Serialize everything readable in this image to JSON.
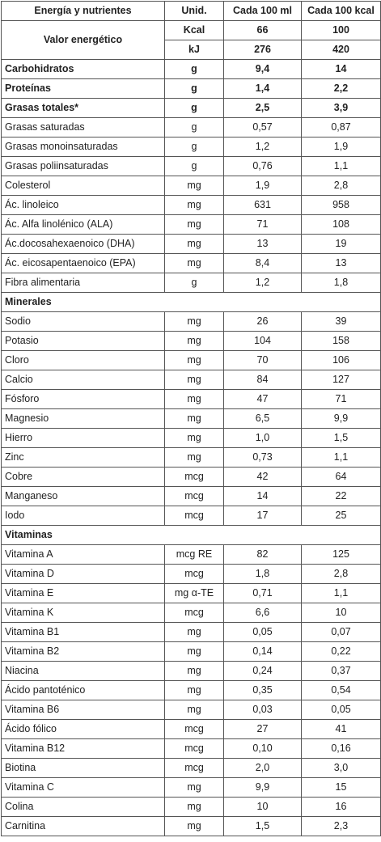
{
  "header": {
    "nutrient": "Energía y nutrientes",
    "unit": "Unid.",
    "per_100ml": "Cada 100 ml",
    "per_100kcal": "Cada 100 kcal"
  },
  "energy": {
    "label": "Valor energético",
    "rows": [
      {
        "unit": "Kcal",
        "v1": "66",
        "v2": "100"
      },
      {
        "unit": "kJ",
        "v1": "276",
        "v2": "420"
      }
    ]
  },
  "macros": [
    {
      "name": "Carbohidratos",
      "unit": "g",
      "v1": "9,4",
      "v2": "14",
      "bold": true
    },
    {
      "name": "Proteínas",
      "unit": "g",
      "v1": "1,4",
      "v2": "2,2",
      "bold": true
    },
    {
      "name": "Grasas totales*",
      "unit": "g",
      "v1": "2,5",
      "v2": "3,9",
      "bold": true
    },
    {
      "name": "Grasas saturadas",
      "unit": "g",
      "v1": "0,57",
      "v2": "0,87"
    },
    {
      "name": "Grasas monoinsaturadas",
      "unit": "g",
      "v1": "1,2",
      "v2": "1,9"
    },
    {
      "name": "Grasas poliinsaturadas",
      "unit": "g",
      "v1": "0,76",
      "v2": "1,1"
    },
    {
      "name": "Colesterol",
      "unit": "mg",
      "v1": "1,9",
      "v2": "2,8"
    },
    {
      "name": "Ác. linoleico",
      "unit": "mg",
      "v1": "631",
      "v2": "958"
    },
    {
      "name": "Ác. Alfa linolénico (ALA)",
      "unit": "mg",
      "v1": "71",
      "v2": "108"
    },
    {
      "name": "Ác.docosahexaenoico (DHA)",
      "unit": "mg",
      "v1": "13",
      "v2": "19"
    },
    {
      "name": "Ác. eicosapentaenoico (EPA)",
      "unit": "mg",
      "v1": "8,4",
      "v2": "13"
    },
    {
      "name": "Fibra alimentaria",
      "unit": "g",
      "v1": "1,2",
      "v2": "1,8"
    }
  ],
  "minerals_title": "Minerales",
  "minerals": [
    {
      "name": "Sodio",
      "unit": "mg",
      "v1": "26",
      "v2": "39"
    },
    {
      "name": "Potasio",
      "unit": "mg",
      "v1": "104",
      "v2": "158"
    },
    {
      "name": "Cloro",
      "unit": "mg",
      "v1": "70",
      "v2": "106"
    },
    {
      "name": "Calcio",
      "unit": "mg",
      "v1": "84",
      "v2": "127"
    },
    {
      "name": "Fósforo",
      "unit": "mg",
      "v1": "47",
      "v2": "71"
    },
    {
      "name": "Magnesio",
      "unit": "mg",
      "v1": "6,5",
      "v2": "9,9"
    },
    {
      "name": "Hierro",
      "unit": "mg",
      "v1": "1,0",
      "v2": "1,5"
    },
    {
      "name": "Zinc",
      "unit": "mg",
      "v1": "0,73",
      "v2": "1,1"
    },
    {
      "name": "Cobre",
      "unit": "mcg",
      "v1": "42",
      "v2": "64"
    },
    {
      "name": "Manganeso",
      "unit": "mcg",
      "v1": "14",
      "v2": "22"
    },
    {
      "name": "Iodo",
      "unit": "mcg",
      "v1": "17",
      "v2": "25"
    }
  ],
  "vitamins_title": "Vitaminas",
  "vitamins": [
    {
      "name": "Vitamina A",
      "unit": "mcg RE",
      "v1": "82",
      "v2": "125"
    },
    {
      "name": "Vitamina D",
      "unit": "mcg",
      "v1": "1,8",
      "v2": "2,8"
    },
    {
      "name": "Vitamina E",
      "unit": "mg α-TE",
      "v1": "0,71",
      "v2": "1,1"
    },
    {
      "name": "Vitamina K",
      "unit": "mcg",
      "v1": "6,6",
      "v2": "10"
    },
    {
      "name": "Vitamina B1",
      "unit": "mg",
      "v1": "0,05",
      "v2": "0,07"
    },
    {
      "name": "Vitamina B2",
      "unit": "mg",
      "v1": "0,14",
      "v2": "0,22"
    },
    {
      "name": "Niacina",
      "unit": "mg",
      "v1": "0,24",
      "v2": "0,37"
    },
    {
      "name": "Ácido pantoténico",
      "unit": "mg",
      "v1": "0,35",
      "v2": "0,54"
    },
    {
      "name": "Vitamina B6",
      "unit": "mg",
      "v1": "0,03",
      "v2": "0,05"
    },
    {
      "name": "Ácido fólico",
      "unit": "mcg",
      "v1": "27",
      "v2": "41"
    },
    {
      "name": "Vitamina B12",
      "unit": "mcg",
      "v1": "0,10",
      "v2": "0,16"
    },
    {
      "name": "Biotina",
      "unit": "mcg",
      "v1": "2,0",
      "v2": "3,0"
    },
    {
      "name": "Vitamina C",
      "unit": "mg",
      "v1": "9,9",
      "v2": "15"
    },
    {
      "name": "Colina",
      "unit": "mg",
      "v1": "10",
      "v2": "16"
    },
    {
      "name": "Carnitina",
      "unit": "mg",
      "v1": "1,5",
      "v2": "2,3"
    }
  ]
}
